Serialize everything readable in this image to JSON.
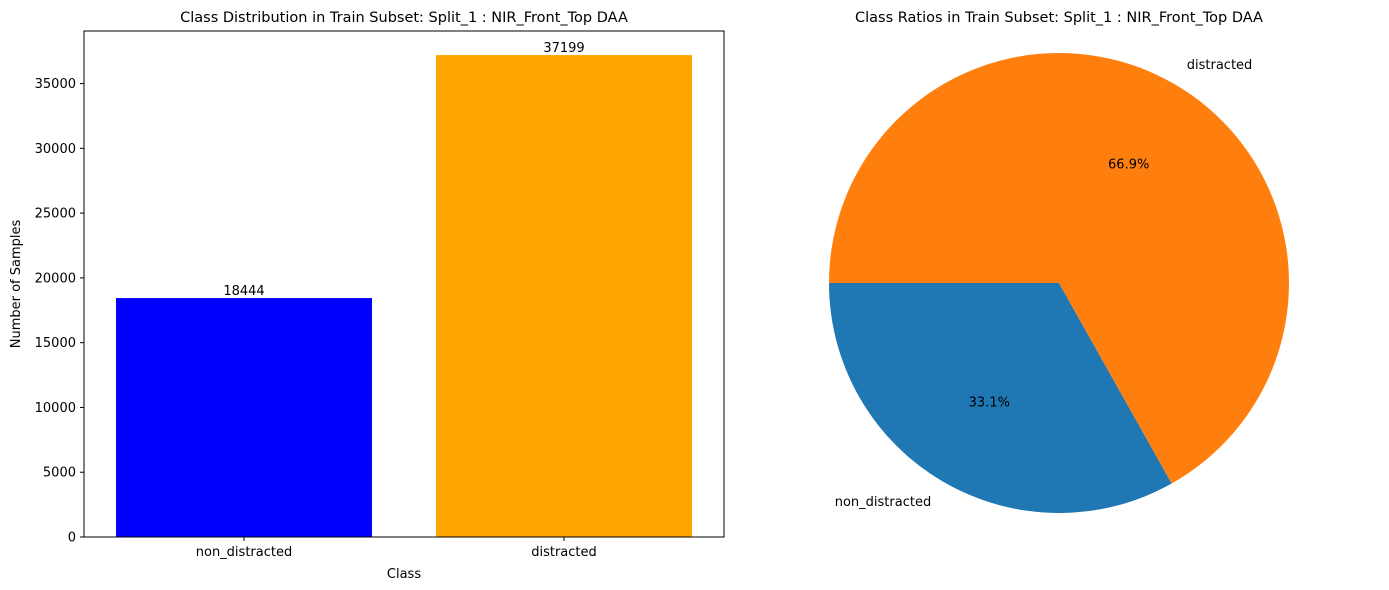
{
  "chart_data": [
    {
      "type": "bar",
      "title": "Class Distribution in Train Subset: Split_1 : NIR_Front_Top DAA",
      "xlabel": "Class",
      "ylabel": "Number of Samples",
      "categories": [
        "non_distracted",
        "distracted"
      ],
      "values": [
        18444,
        37199
      ],
      "data_labels": [
        "18444",
        "37199"
      ],
      "colors": [
        "#0000ff",
        "#ffa500"
      ],
      "ylim": [
        0,
        39058
      ],
      "yticks": [
        0,
        5000,
        10000,
        15000,
        20000,
        25000,
        30000,
        35000
      ],
      "grid": false,
      "legend": "none"
    },
    {
      "type": "pie",
      "title": "Class Ratios in Train Subset: Split_1 : NIR_Front_Top DAA",
      "labels": [
        "non_distracted",
        "distracted"
      ],
      "values": [
        18444,
        37199
      ],
      "percent_labels": [
        "33.1%",
        "66.9%"
      ],
      "colors": [
        "#1f77b4",
        "#ff7f0e"
      ],
      "start_angle_deg": 180,
      "legend": "none"
    }
  ]
}
